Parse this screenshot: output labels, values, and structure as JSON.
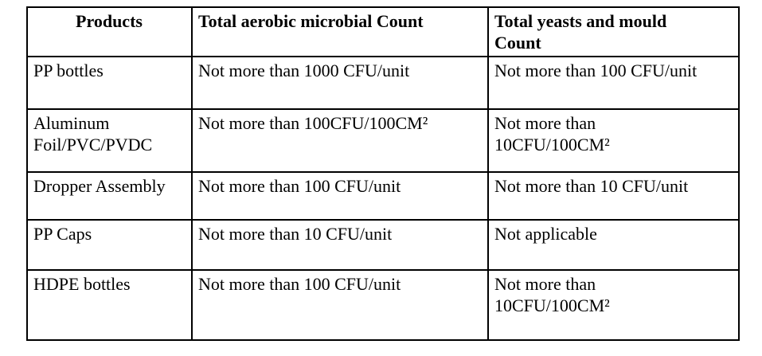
{
  "table": {
    "columns": [
      {
        "label": "Products"
      },
      {
        "label": "Total aerobic microbial Count"
      },
      {
        "label": "Total yeasts and mould\nCount"
      }
    ],
    "rows": [
      {
        "product": "PP bottles",
        "aerobic_count": "Not more than 1000 CFU/unit",
        "yeast_mould_count": "Not more than 100 CFU/unit"
      },
      {
        "product": "Aluminum\nFoil/PVC/PVDC",
        "aerobic_count": "Not more than 100CFU/100CM²",
        "yeast_mould_count": "Not more than\n10CFU/100CM²"
      },
      {
        "product": "Dropper Assembly",
        "aerobic_count": "Not more than 100 CFU/unit",
        "yeast_mould_count": "Not more than 10 CFU/unit"
      },
      {
        "product": "PP Caps",
        "aerobic_count": "Not more than 10 CFU/unit",
        "yeast_mould_count": "Not applicable"
      },
      {
        "product": "HDPE bottles",
        "aerobic_count": "Not more than 100 CFU/unit",
        "yeast_mould_count": "Not more than\n10CFU/100CM²"
      }
    ]
  }
}
